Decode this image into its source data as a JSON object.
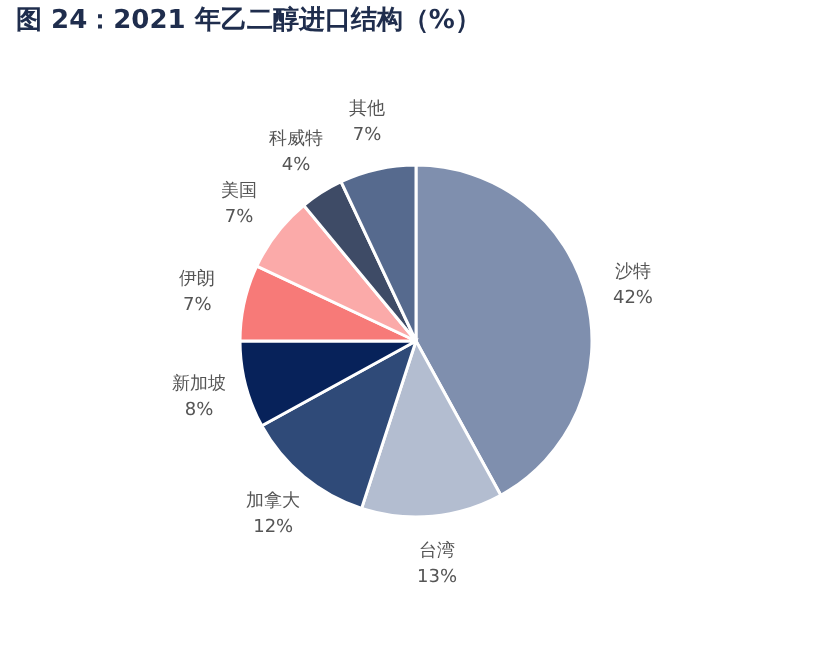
{
  "chart_data": {
    "type": "pie",
    "title": "图 24：2021 年乙二醇进口结构（%）",
    "categories": [
      "沙特",
      "台湾",
      "加拿大",
      "新加坡",
      "伊朗",
      "美国",
      "科威特",
      "其他"
    ],
    "values": [
      42,
      13,
      12,
      8,
      7,
      7,
      4,
      7
    ],
    "value_labels": [
      "42%",
      "13%",
      "12%",
      "8%",
      "7%",
      "7%",
      "4%",
      "7%"
    ],
    "colors": [
      "#7f8fae",
      "#b3bdd0",
      "#2f4a78",
      "#07225a",
      "#f77a78",
      "#fbaaa9",
      "#3e4b66",
      "#566a8e"
    ],
    "legend": false
  }
}
